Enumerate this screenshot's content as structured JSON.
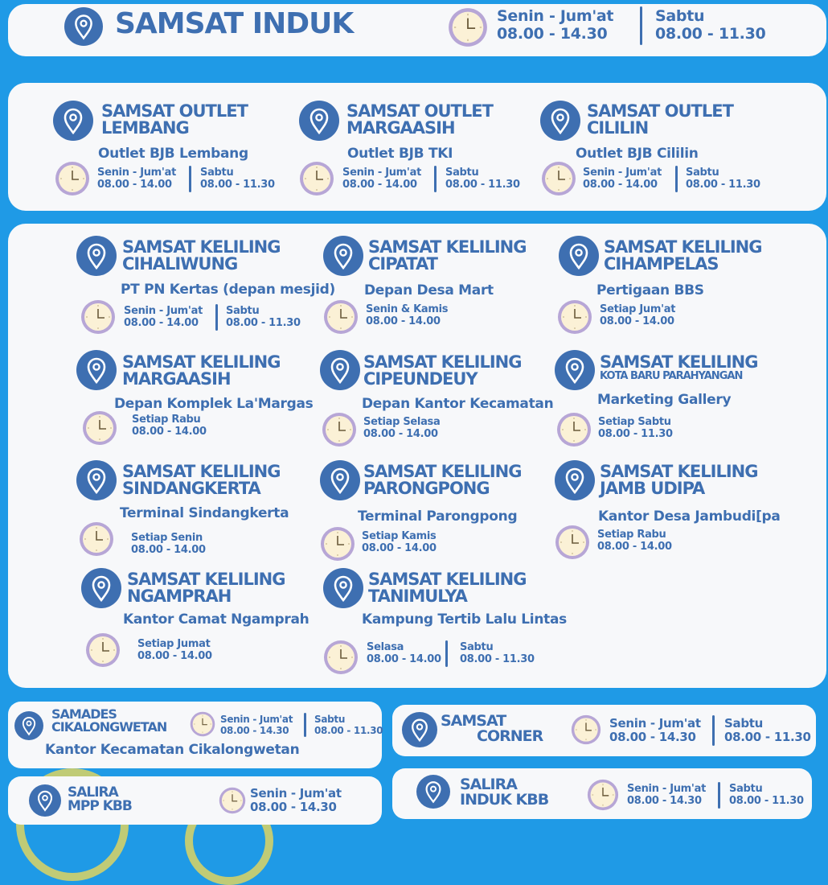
{
  "colors": {
    "background": "#1f9ae6",
    "card": "#f7f8fa",
    "text": "#3e6fb1",
    "clock_rim": "#b7a6d6",
    "clock_face": "#fbf1d6"
  },
  "icons": {
    "location": "map-pin-icon",
    "hours": "clock-icon"
  },
  "samsat_induk": {
    "title": [
      "SAMSAT INDUK"
    ],
    "place": "",
    "hours": [
      {
        "days": "Senin - Jum'at",
        "time": "08.00 - 14.30"
      },
      {
        "days": "Sabtu",
        "time": "08.00 - 11.30"
      }
    ]
  },
  "outlets": [
    {
      "title": [
        "SAMSAT OUTLET",
        "LEMBANG"
      ],
      "place": "Outlet BJB Lembang",
      "hours": [
        {
          "days": "Senin - Jum'at",
          "time": "08.00 - 14.00"
        },
        {
          "days": "Sabtu",
          "time": "08.00 - 11.30"
        }
      ]
    },
    {
      "title": [
        "SAMSAT OUTLET",
        "MARGAASIH"
      ],
      "place": "Outlet BJB TKI",
      "hours": [
        {
          "days": "Senin - Jum'at",
          "time": "08.00 - 14.00"
        },
        {
          "days": "Sabtu",
          "time": "08.00 - 11.30"
        }
      ]
    },
    {
      "title": [
        "SAMSAT OUTLET",
        "CILILIN"
      ],
      "place": "Outlet BJB Cililin",
      "hours": [
        {
          "days": "Senin - Jum'at",
          "time": "08.00 - 14.00"
        },
        {
          "days": "Sabtu",
          "time": "08.00 - 11.30"
        }
      ]
    }
  ],
  "keliling": [
    {
      "title": [
        "SAMSAT KELILING",
        "CIHALIWUNG"
      ],
      "place": "PT PN Kertas (depan mesjid)",
      "hours": [
        {
          "days": "Senin - Jum'at",
          "time": "08.00 - 14.00"
        },
        {
          "days": "Sabtu",
          "time": "08.00 - 11.30"
        }
      ]
    },
    {
      "title": [
        "SAMSAT KELILING",
        "CIPATAT"
      ],
      "place": "Depan Desa Mart",
      "hours": [
        {
          "days": "Senin & Kamis",
          "time": "08.00 - 14.00"
        }
      ]
    },
    {
      "title": [
        "SAMSAT KELILING",
        "CIHAMPELAS"
      ],
      "place": "Pertigaan BBS",
      "hours": [
        {
          "days": "Setiap Jum'at",
          "time": "08.00 - 14.00"
        }
      ]
    },
    {
      "title": [
        "SAMSAT KELILING",
        "MARGAASIH"
      ],
      "place": "Depan Komplek La'Margas",
      "hours": [
        {
          "days": "Setiap Rabu",
          "time": "08.00 - 14.00"
        }
      ]
    },
    {
      "title": [
        "SAMSAT KELILING",
        "CIPEUNDEUY"
      ],
      "place": "Depan Kantor Kecamatan",
      "hours": [
        {
          "days": "Setiap Selasa",
          "time": "08.00 - 14.00"
        }
      ]
    },
    {
      "title": [
        "SAMSAT KELILING",
        "KOTA BARU PARAHYANGAN"
      ],
      "place": "Marketing Gallery",
      "hours": [
        {
          "days": "Setiap Sabtu",
          "time": "08.00 - 11.30"
        }
      ]
    },
    {
      "title": [
        "SAMSAT KELILING",
        "SINDANGKERTA"
      ],
      "place": "Terminal Sindangkerta",
      "hours": [
        {
          "days": "Setiap Senin",
          "time": "08.00 - 14.00"
        }
      ]
    },
    {
      "title": [
        "SAMSAT KELILING",
        "PARONGPONG"
      ],
      "place": "Terminal Parongpong",
      "hours": [
        {
          "days": "Setiap Kamis",
          "time": "08.00 - 14.00"
        }
      ]
    },
    {
      "title": [
        "SAMSAT KELILING",
        "JAMB UDIPA"
      ],
      "place": "Kantor Desa Jambudi[pa",
      "hours": [
        {
          "days": "Setiap Rabu",
          "time": "08.00 - 14.00"
        }
      ]
    },
    {
      "title": [
        "SAMSAT KELILING",
        "NGAMPRAH"
      ],
      "place": "Kantor Camat Ngamprah",
      "hours": [
        {
          "days": "Setiap Jumat",
          "time": "08.00 - 14.00"
        }
      ]
    },
    {
      "title": [
        "SAMSAT KELILING",
        "TANIMULYA"
      ],
      "place": "Kampung Tertib Lalu Lintas",
      "hours": [
        {
          "days": "Selasa",
          "time": "08.00 - 14.00"
        },
        {
          "days": "Sabtu",
          "time": "08.00 - 11.30"
        }
      ]
    }
  ],
  "others": [
    {
      "title": [
        "SAMADES",
        "CIKALONGWETAN"
      ],
      "place": "Kantor Kecamatan Cikalongwetan",
      "hours": [
        {
          "days": "Senin - Jum'at",
          "time": "08.00 - 14.30"
        },
        {
          "days": "Sabtu",
          "time": "08.00 - 11.30"
        }
      ]
    },
    {
      "title": [
        "SAMSAT",
        "CORNER"
      ],
      "place": "",
      "hours": [
        {
          "days": "Senin - Jum'at",
          "time": "08.00 - 14.30"
        },
        {
          "days": "Sabtu",
          "time": "08.00 - 11.30"
        }
      ]
    },
    {
      "title": [
        "SALIRA",
        "MPP KBB"
      ],
      "place": "",
      "hours": [
        {
          "days": "Senin - Jum'at",
          "time": "08.00 - 14.30"
        }
      ]
    },
    {
      "title": [
        "SALIRA",
        "INDUK KBB"
      ],
      "place": "",
      "hours": [
        {
          "days": "Senin - Jum'at",
          "time": "08.00 - 14.30"
        },
        {
          "days": "Sabtu",
          "time": "08.00 - 11.30"
        }
      ]
    }
  ]
}
